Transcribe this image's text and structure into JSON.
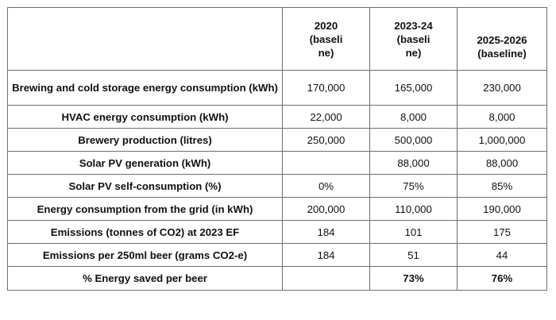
{
  "table": {
    "headers": [
      "",
      "2020\n(baseli\nne)",
      "2023-24\n(baseli\nne)",
      "2025-2026\n(baseline)"
    ],
    "header_lines": [
      [],
      [
        "2020",
        "(baseli",
        "ne)"
      ],
      [
        "2023-24",
        "(baseli",
        "ne)"
      ],
      [
        "2025-2026",
        "(baseline)"
      ]
    ],
    "rows": [
      {
        "label": "Brewing and cold storage energy consumption (kWh)",
        "values": [
          "170,000",
          "165,000",
          "230,000"
        ]
      },
      {
        "label": "HVAC energy consumption (kWh)",
        "values": [
          "22,000",
          "8,000",
          "8,000"
        ]
      },
      {
        "label": "Brewery production (litres)",
        "values": [
          "250,000",
          "500,000",
          "1,000,000"
        ]
      },
      {
        "label": "Solar PV generation (kWh)",
        "values": [
          "",
          "88,000",
          "88,000"
        ]
      },
      {
        "label": "Solar PV self-consumption (%)",
        "values": [
          "0%",
          "75%",
          "85%"
        ]
      },
      {
        "label": "Energy consumption from the grid (in kWh)",
        "values": [
          "200,000",
          "110,000",
          "190,000"
        ]
      },
      {
        "label": "Emissions (tonnes of CO2) at 2023 EF",
        "values": [
          "184",
          "101",
          "175"
        ]
      },
      {
        "label": "Emissions per 250ml beer (grams CO2-e)",
        "values": [
          "184",
          "51",
          "44"
        ]
      },
      {
        "label": "% Energy saved per beer",
        "values": [
          "",
          "73%",
          "76%"
        ]
      }
    ]
  },
  "colors": {
    "border": "#6e6e6e",
    "text": "#111111",
    "background": "#ffffff"
  }
}
